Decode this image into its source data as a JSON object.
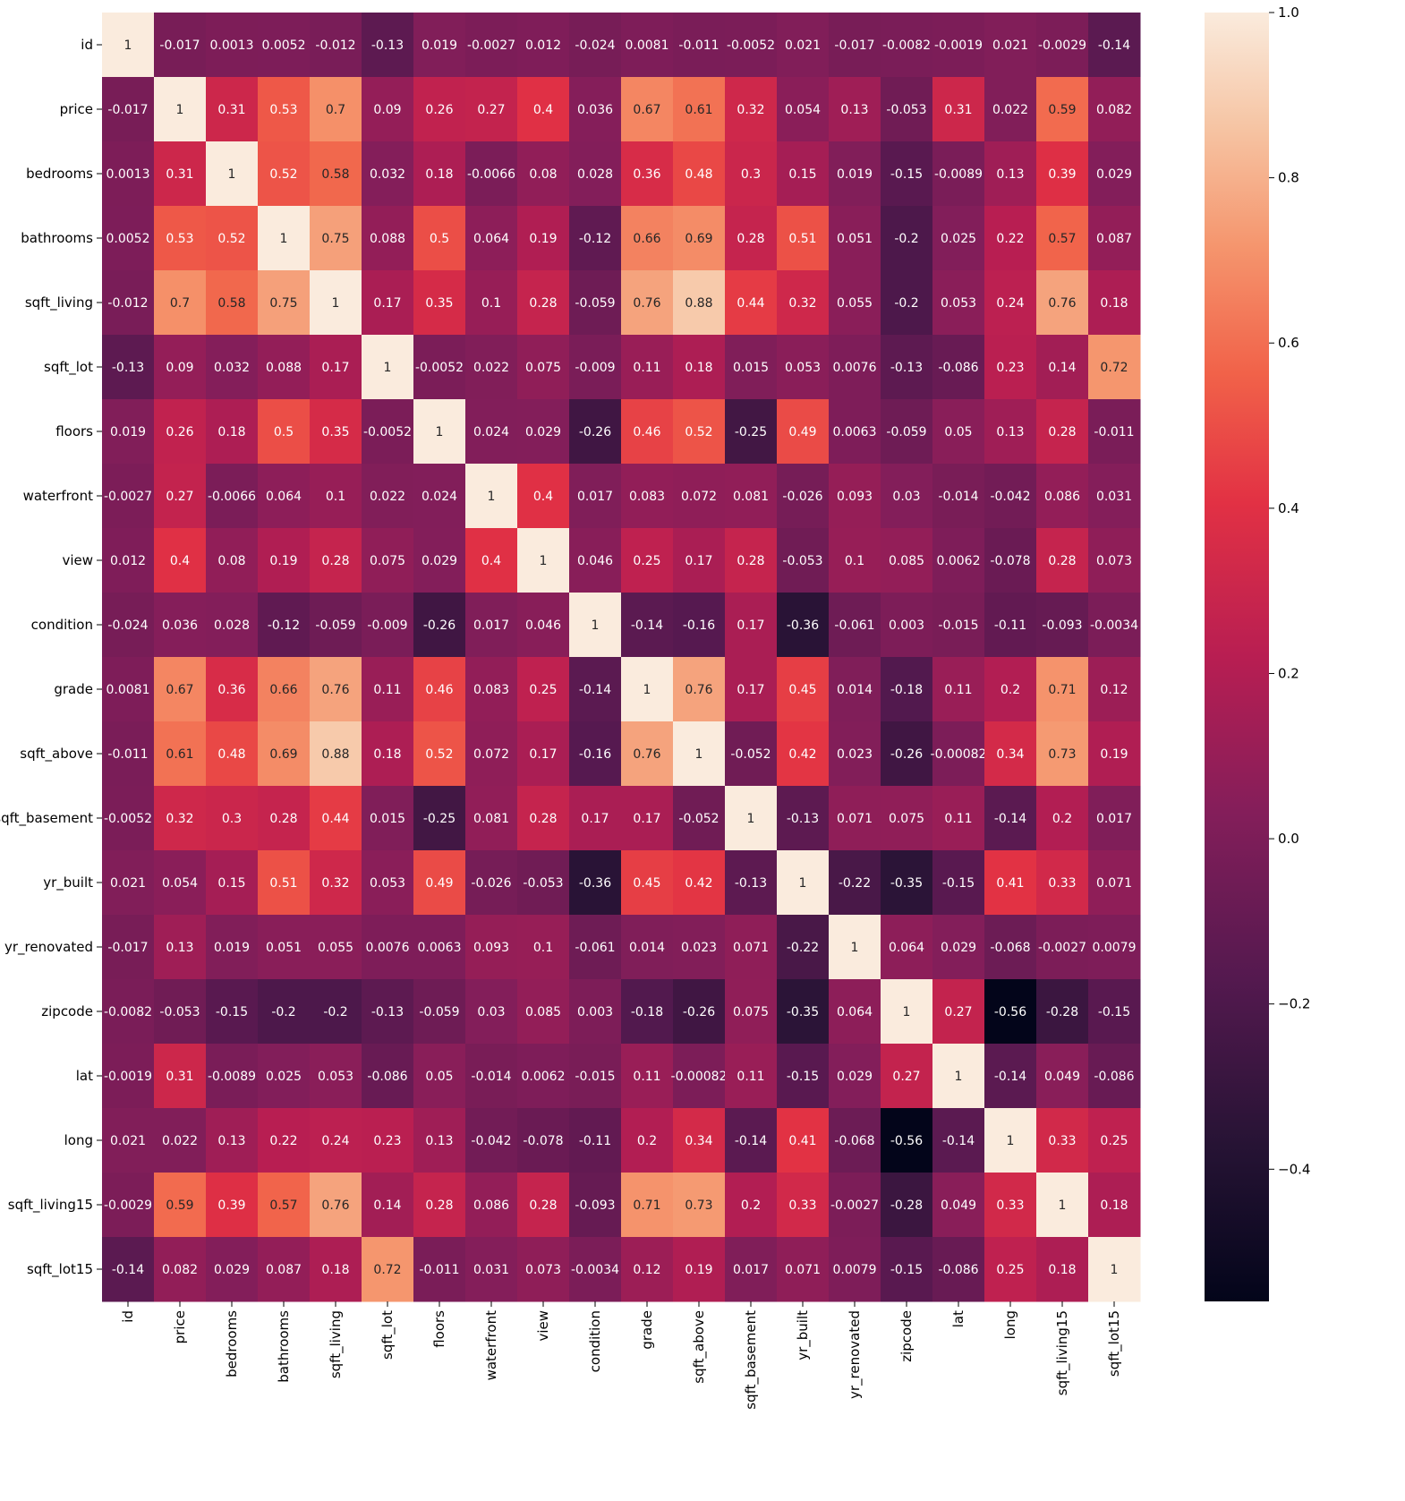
{
  "chart_data": {
    "type": "heatmap",
    "title": "",
    "xlabel": "",
    "ylabel": "",
    "labels": [
      "id",
      "price",
      "bedrooms",
      "bathrooms",
      "sqft_living",
      "sqft_lot",
      "floors",
      "waterfront",
      "view",
      "condition",
      "grade",
      "sqft_above",
      "sqft_basement",
      "yr_built",
      "yr_renovated",
      "zipcode",
      "lat",
      "long",
      "sqft_living15",
      "sqft_lot15"
    ],
    "matrix": [
      [
        "1",
        "-0.017",
        "0.0013",
        "0.0052",
        "-0.012",
        "-0.13",
        "0.019",
        "-0.0027",
        "0.012",
        "-0.024",
        "0.0081",
        "-0.011",
        "-0.0052",
        "0.021",
        "-0.017",
        "-0.0082",
        "-0.0019",
        "0.021",
        "-0.0029",
        "-0.14"
      ],
      [
        "-0.017",
        "1",
        "0.31",
        "0.53",
        "0.7",
        "0.09",
        "0.26",
        "0.27",
        "0.4",
        "0.036",
        "0.67",
        "0.61",
        "0.32",
        "0.054",
        "0.13",
        "-0.053",
        "0.31",
        "0.022",
        "0.59",
        "0.082"
      ],
      [
        "0.0013",
        "0.31",
        "1",
        "0.52",
        "0.58",
        "0.032",
        "0.18",
        "-0.0066",
        "0.08",
        "0.028",
        "0.36",
        "0.48",
        "0.3",
        "0.15",
        "0.019",
        "-0.15",
        "-0.0089",
        "0.13",
        "0.39",
        "0.029"
      ],
      [
        "0.0052",
        "0.53",
        "0.52",
        "1",
        "0.75",
        "0.088",
        "0.5",
        "0.064",
        "0.19",
        "-0.12",
        "0.66",
        "0.69",
        "0.28",
        "0.51",
        "0.051",
        "-0.2",
        "0.025",
        "0.22",
        "0.57",
        "0.087"
      ],
      [
        "-0.012",
        "0.7",
        "0.58",
        "0.75",
        "1",
        "0.17",
        "0.35",
        "0.1",
        "0.28",
        "-0.059",
        "0.76",
        "0.88",
        "0.44",
        "0.32",
        "0.055",
        "-0.2",
        "0.053",
        "0.24",
        "0.76",
        "0.18"
      ],
      [
        "-0.13",
        "0.09",
        "0.032",
        "0.088",
        "0.17",
        "1",
        "-0.0052",
        "0.022",
        "0.075",
        "-0.009",
        "0.11",
        "0.18",
        "0.015",
        "0.053",
        "0.0076",
        "-0.13",
        "-0.086",
        "0.23",
        "0.14",
        "0.72"
      ],
      [
        "0.019",
        "0.26",
        "0.18",
        "0.5",
        "0.35",
        "-0.0052",
        "1",
        "0.024",
        "0.029",
        "-0.26",
        "0.46",
        "0.52",
        "-0.25",
        "0.49",
        "0.0063",
        "-0.059",
        "0.05",
        "0.13",
        "0.28",
        "-0.011"
      ],
      [
        "-0.0027",
        "0.27",
        "-0.0066",
        "0.064",
        "0.1",
        "0.022",
        "0.024",
        "1",
        "0.4",
        "0.017",
        "0.083",
        "0.072",
        "0.081",
        "-0.026",
        "0.093",
        "0.03",
        "-0.014",
        "-0.042",
        "0.086",
        "0.031"
      ],
      [
        "0.012",
        "0.4",
        "0.08",
        "0.19",
        "0.28",
        "0.075",
        "0.029",
        "0.4",
        "1",
        "0.046",
        "0.25",
        "0.17",
        "0.28",
        "-0.053",
        "0.1",
        "0.085",
        "0.0062",
        "-0.078",
        "0.28",
        "0.073"
      ],
      [
        "-0.024",
        "0.036",
        "0.028",
        "-0.12",
        "-0.059",
        "-0.009",
        "-0.26",
        "0.017",
        "0.046",
        "1",
        "-0.14",
        "-0.16",
        "0.17",
        "-0.36",
        "-0.061",
        "0.003",
        "-0.015",
        "-0.11",
        "-0.093",
        "-0.0034"
      ],
      [
        "0.0081",
        "0.67",
        "0.36",
        "0.66",
        "0.76",
        "0.11",
        "0.46",
        "0.083",
        "0.25",
        "-0.14",
        "1",
        "0.76",
        "0.17",
        "0.45",
        "0.014",
        "-0.18",
        "0.11",
        "0.2",
        "0.71",
        "0.12"
      ],
      [
        "-0.011",
        "0.61",
        "0.48",
        "0.69",
        "0.88",
        "0.18",
        "0.52",
        "0.072",
        "0.17",
        "-0.16",
        "0.76",
        "1",
        "-0.052",
        "0.42",
        "0.023",
        "-0.26",
        "-0.00082",
        "0.34",
        "0.73",
        "0.19"
      ],
      [
        "-0.0052",
        "0.32",
        "0.3",
        "0.28",
        "0.44",
        "0.015",
        "-0.25",
        "0.081",
        "0.28",
        "0.17",
        "0.17",
        "-0.052",
        "1",
        "-0.13",
        "0.071",
        "0.075",
        "0.11",
        "-0.14",
        "0.2",
        "0.017"
      ],
      [
        "0.021",
        "0.054",
        "0.15",
        "0.51",
        "0.32",
        "0.053",
        "0.49",
        "-0.026",
        "-0.053",
        "-0.36",
        "0.45",
        "0.42",
        "-0.13",
        "1",
        "-0.22",
        "-0.35",
        "-0.15",
        "0.41",
        "0.33",
        "0.071"
      ],
      [
        "-0.017",
        "0.13",
        "0.019",
        "0.051",
        "0.055",
        "0.0076",
        "0.0063",
        "0.093",
        "0.1",
        "-0.061",
        "0.014",
        "0.023",
        "0.071",
        "-0.22",
        "1",
        "0.064",
        "0.029",
        "-0.068",
        "-0.0027",
        "0.0079"
      ],
      [
        "-0.0082",
        "-0.053",
        "-0.15",
        "-0.2",
        "-0.2",
        "-0.13",
        "-0.059",
        "0.03",
        "0.085",
        "0.003",
        "-0.18",
        "-0.26",
        "0.075",
        "-0.35",
        "0.064",
        "1",
        "0.27",
        "-0.56",
        "-0.28",
        "-0.15"
      ],
      [
        "-0.0019",
        "0.31",
        "-0.0089",
        "0.025",
        "0.053",
        "-0.086",
        "0.05",
        "-0.014",
        "0.0062",
        "-0.015",
        "0.11",
        "-0.00082",
        "0.11",
        "-0.15",
        "0.029",
        "0.27",
        "1",
        "-0.14",
        "0.049",
        "-0.086"
      ],
      [
        "0.021",
        "0.022",
        "0.13",
        "0.22",
        "0.24",
        "0.23",
        "0.13",
        "-0.042",
        "-0.078",
        "-0.11",
        "0.2",
        "0.34",
        "-0.14",
        "0.41",
        "-0.068",
        "-0.56",
        "-0.14",
        "1",
        "0.33",
        "0.25"
      ],
      [
        "-0.0029",
        "0.59",
        "0.39",
        "0.57",
        "0.76",
        "0.14",
        "0.28",
        "0.086",
        "0.28",
        "-0.093",
        "0.71",
        "0.73",
        "0.2",
        "0.33",
        "-0.0027",
        "-0.28",
        "0.049",
        "0.33",
        "1",
        "0.18"
      ],
      [
        "-0.14",
        "0.082",
        "0.029",
        "0.087",
        "0.18",
        "0.72",
        "-0.011",
        "0.031",
        "0.073",
        "-0.0034",
        "0.12",
        "0.19",
        "0.017",
        "0.071",
        "0.0079",
        "-0.15",
        "-0.086",
        "0.25",
        "0.18",
        "1"
      ]
    ],
    "colorbar": {
      "min": -0.56,
      "max": 1.0,
      "ticks": [
        "1.0",
        "0.8",
        "0.6",
        "0.4",
        "0.2",
        "0.0",
        "−0.2",
        "−0.4"
      ],
      "tick_values": [
        1.0,
        0.8,
        0.6,
        0.4,
        0.2,
        0.0,
        -0.2,
        -0.4
      ],
      "colormap": "rocket"
    },
    "grid": false,
    "legend": "colorbar-right"
  }
}
